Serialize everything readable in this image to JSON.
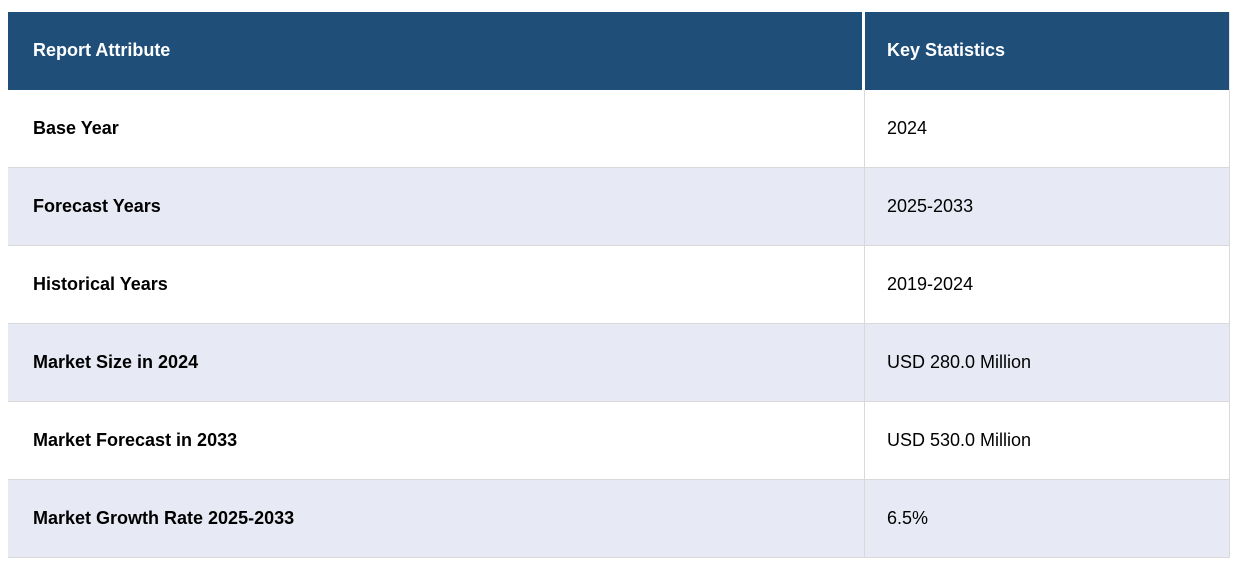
{
  "chart_data": {
    "type": "table",
    "columns": [
      "Report Attribute",
      "Key Statistics"
    ],
    "rows": [
      [
        "Base Year",
        "2024"
      ],
      [
        "Forecast Years",
        "2025-2033"
      ],
      [
        "Historical Years",
        "2019-2024"
      ],
      [
        "Market Size in 2024",
        "USD 280.0 Million"
      ],
      [
        "Market Forecast in 2033",
        "USD 530.0 Million"
      ],
      [
        "Market Growth Rate 2025-2033",
        "6.5%"
      ]
    ]
  },
  "colors": {
    "header_bg": "#1F4E79",
    "header_text": "#FFFFFF",
    "row_alt_bg": "#E7E9F4",
    "row_bg": "#FFFFFF",
    "body_text": "#000000",
    "cell_border": "#D9D9D9",
    "header_divider": "#FFFFFF"
  }
}
